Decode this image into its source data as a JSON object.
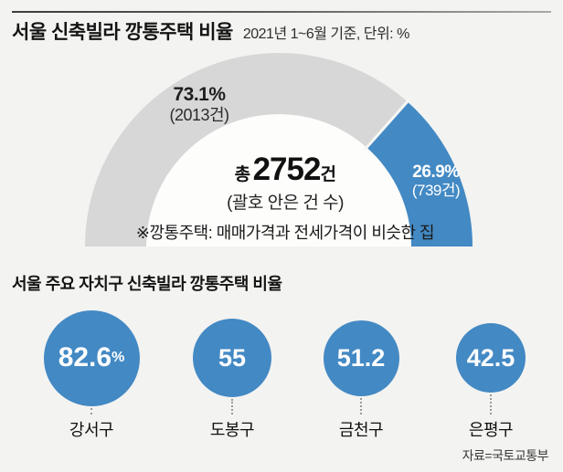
{
  "page": {
    "bg_color": "#f3f3f1",
    "accent_blue": "#4389c4",
    "arc_gray": "#d7d7d7"
  },
  "header": {
    "title": "서울 신축빌라 깡통주택 비율",
    "subtitle": "2021년 1~6월 기준, 단위: %"
  },
  "chart_data": [
    {
      "type": "pie",
      "subtype": "semicircle-donut-gauge",
      "title": "서울 신축빌라 깡통주택 비율",
      "period": "2021년 1~6월 기준",
      "unit": "%",
      "total": {
        "prefix": "총",
        "value": "2752",
        "suffix": "건",
        "note": "(괄호 안은 건 수)"
      },
      "footnote": "※깡통주택: 매매가격과 전세가격이 비슷한 집",
      "segments": [
        {
          "pct": 73.1,
          "pct_label": "73.1%",
          "count": 2013,
          "count_label": "(2013건)",
          "color": "#d7d7d7"
        },
        {
          "pct": 26.9,
          "pct_label": "26.9%",
          "count": 739,
          "count_label": "(739건)",
          "color": "#4389c4"
        }
      ]
    },
    {
      "type": "bubble",
      "title": "서울 주요 자치구 신축빌라 깡통주택 비율",
      "categories": [
        "강서구",
        "도봉구",
        "금천구",
        "은평구"
      ],
      "values": [
        82.6,
        55,
        51.2,
        42.5
      ],
      "value_labels": [
        "82.6",
        "55",
        "51.2",
        "42.5"
      ],
      "value_suffixes": [
        "%",
        "",
        "",
        ""
      ],
      "bubble_color": "#4389c4",
      "unit": "%"
    }
  ],
  "section2": {
    "title": "서울 주요 자치구 신축빌라 깡통주택 비율"
  },
  "source": "자료=국토교통부"
}
